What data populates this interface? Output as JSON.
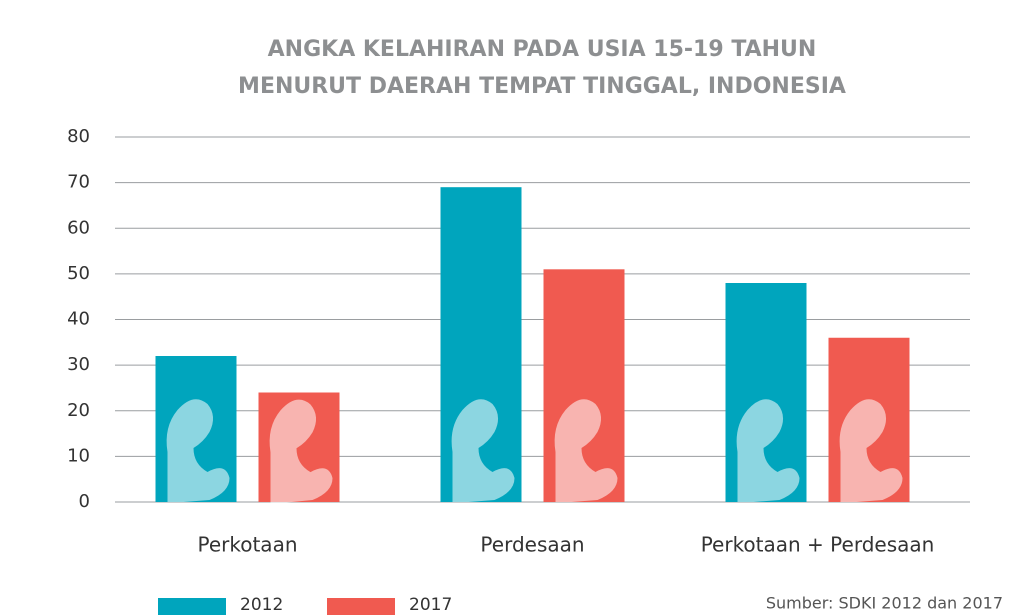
{
  "chart_data": {
    "type": "bar",
    "title": [
      "ANGKA KELAHIRAN PADA USIA 15-19 TAHUN",
      "MENURUT DAERAH TEMPAT TINGGAL, INDONESIA"
    ],
    "categories": [
      "Perkotaan",
      "Perdesaan",
      "Perkotaan + Perdesaan"
    ],
    "series": [
      {
        "name": "2012",
        "color": "#00a5bd",
        "values": [
          32,
          69,
          48
        ]
      },
      {
        "name": "2017",
        "color": "#f05a50",
        "values": [
          24,
          51,
          36
        ]
      }
    ],
    "ylim": [
      0,
      80
    ],
    "yticks": [
      0,
      10,
      20,
      30,
      40,
      50,
      60,
      70,
      80
    ],
    "grid": true,
    "legend": "bottom",
    "source": "Sumber: SDKI 2012 dan 2017"
  }
}
